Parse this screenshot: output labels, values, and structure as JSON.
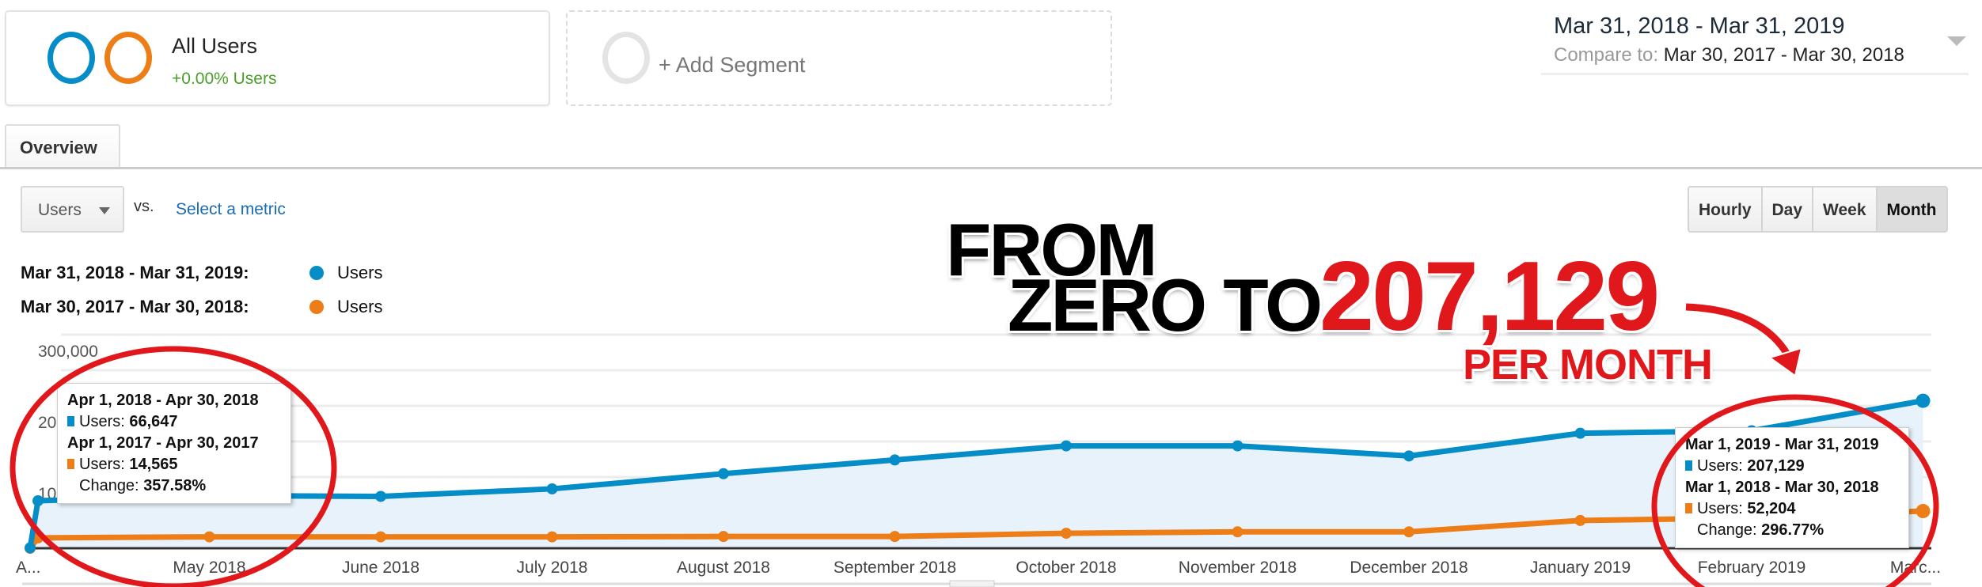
{
  "segments": {
    "active": {
      "title": "All Users",
      "subtitle": "+0.00% Users"
    },
    "add_label": "+ Add Segment"
  },
  "date_range": {
    "main": "Mar 31, 2018 - Mar 31, 2019",
    "compare_label": "Compare to:",
    "compare_value": "Mar 30, 2017 - Mar 30, 2018"
  },
  "tabs": [
    {
      "label": "Overview"
    }
  ],
  "controls": {
    "metric": "Users",
    "vs": "vs.",
    "select_metric": "Select a metric",
    "granularity": [
      "Hourly",
      "Day",
      "Week",
      "Month"
    ],
    "selected_granularity": "Month"
  },
  "legend": [
    {
      "range": "Mar 31, 2018 - Mar 31, 2019:",
      "metric": "Users",
      "color": "#058dc7"
    },
    {
      "range": "Mar 30, 2017 - Mar 30, 2018:",
      "metric": "Users",
      "color": "#ed7e17"
    }
  ],
  "chart_data": {
    "type": "line",
    "x_tick_labels": [
      "A...",
      "May 2018",
      "June 2018",
      "July 2018",
      "August 2018",
      "September 2018",
      "October 2018",
      "November 2018",
      "December 2018",
      "January 2019",
      "February 2019",
      "Marc..."
    ],
    "y_tick_labels": [
      "300,000",
      "20",
      "10"
    ],
    "ylim": [
      0,
      300000
    ],
    "grid": true,
    "series": [
      {
        "name": "Users (Mar 31, 2018 - Mar 31, 2019)",
        "color": "#058dc7",
        "values": [
          500,
          66647,
          74000,
          72800,
          83400,
          104700,
          124000,
          143800,
          143800,
          129600,
          161500,
          165000,
          207129
        ]
      },
      {
        "name": "Users (Mar 30, 2017 - Mar 30, 2018)",
        "color": "#ed7e17",
        "values": [
          0,
          14565,
          16000,
          16000,
          16000,
          16500,
          16500,
          21000,
          23000,
          23000,
          39000,
          42600,
          52204
        ]
      }
    ]
  },
  "tooltips": [
    {
      "range1": "Apr 1, 2018 - Apr 30, 2018",
      "users1_label": "Users:",
      "users1": "66,647",
      "range2": "Apr 1, 2017 - Apr 30, 2017",
      "users2_label": "Users:",
      "users2": "14,565",
      "change_label": "Change:",
      "change": "357.58%"
    },
    {
      "range1": "Mar 1, 2019 - Mar 31, 2019",
      "users1_label": "Users:",
      "users1": "207,129",
      "range2": "Mar 1, 2018 - Mar 30, 2018",
      "users2_label": "Users:",
      "users2": "52,204",
      "change_label": "Change:",
      "change": "296.77%"
    }
  ],
  "annotation": {
    "line1": "FROM",
    "line2": "ZERO TO",
    "number": "207,129",
    "line3": "PER MONTH",
    "accent": "#e0171b"
  }
}
